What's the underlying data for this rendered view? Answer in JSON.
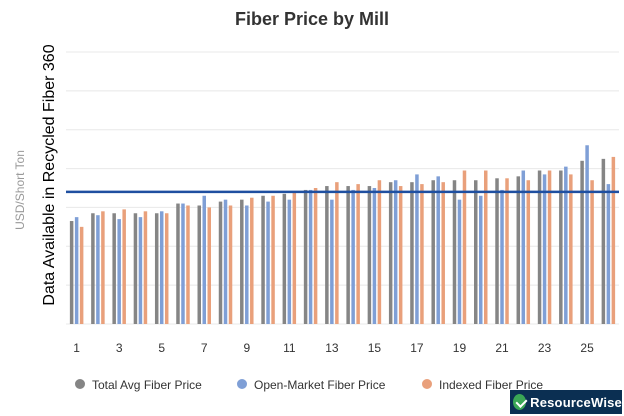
{
  "chart_data": {
    "type": "bar",
    "title": "Fiber Price by Mill",
    "ylabel": "USD/Short Ton",
    "xlabel": "",
    "ylim": [
      0,
      7
    ],
    "grid": true,
    "legend_position": "bottom",
    "categories": [
      1,
      2,
      3,
      4,
      5,
      6,
      7,
      8,
      9,
      10,
      11,
      12,
      13,
      14,
      15,
      16,
      17,
      18,
      19,
      20,
      21,
      22,
      23,
      24,
      25,
      26
    ],
    "x_tick_labels": [
      "1",
      "3",
      "5",
      "7",
      "9",
      "11",
      "13",
      "15",
      "17",
      "19",
      "21",
      "23",
      "25"
    ],
    "series": [
      {
        "name": "Total Avg Fiber Price",
        "color": "#858585",
        "values": [
          2.65,
          2.85,
          2.85,
          2.85,
          2.85,
          3.1,
          3.05,
          3.15,
          3.2,
          3.3,
          3.35,
          3.45,
          3.55,
          3.55,
          3.55,
          3.65,
          3.65,
          3.7,
          3.7,
          3.7,
          3.75,
          3.8,
          3.95,
          3.95,
          4.2,
          4.25
        ]
      },
      {
        "name": "Open-Market Fiber Price",
        "color": "#7f9fd6",
        "values": [
          2.75,
          2.8,
          2.7,
          2.75,
          2.9,
          3.1,
          3.3,
          3.2,
          3.05,
          3.15,
          3.2,
          3.45,
          3.2,
          3.45,
          3.5,
          3.7,
          3.85,
          3.8,
          3.2,
          3.3,
          3.45,
          3.95,
          3.85,
          4.05,
          4.6,
          3.6
        ]
      },
      {
        "name": "Indexed Fiber Price",
        "color": "#e9a07b",
        "values": [
          2.5,
          2.9,
          2.95,
          2.9,
          2.85,
          3.05,
          3.0,
          3.05,
          3.25,
          3.3,
          3.4,
          3.5,
          3.65,
          3.6,
          3.7,
          3.55,
          3.6,
          3.65,
          3.95,
          3.95,
          3.75,
          3.7,
          3.95,
          3.85,
          3.7,
          4.3
        ]
      }
    ],
    "reference_line": {
      "value": 3.4,
      "color": "#1f4fa0"
    },
    "watermark": "Data Available in Recycled Fiber 360"
  },
  "logo": {
    "text": "ResourceWise"
  }
}
